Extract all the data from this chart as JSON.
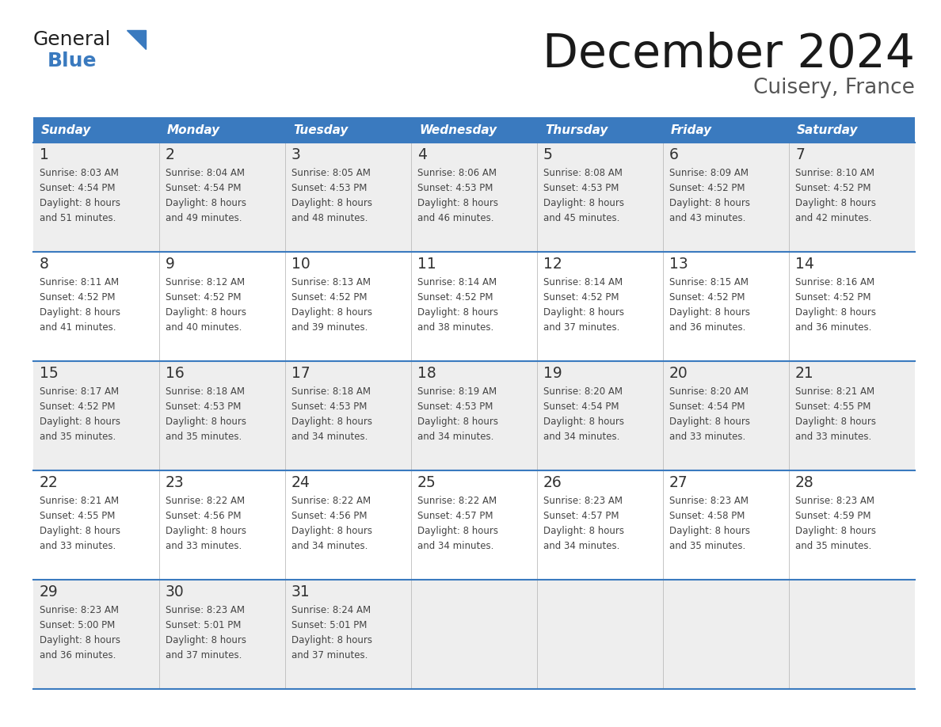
{
  "title": "December 2024",
  "subtitle": "Cuisery, France",
  "header_bg_color": "#3a7abf",
  "header_text_color": "#ffffff",
  "days_of_week": [
    "Sunday",
    "Monday",
    "Tuesday",
    "Wednesday",
    "Thursday",
    "Friday",
    "Saturday"
  ],
  "row_bg_even": "#eeeeee",
  "row_bg_odd": "#ffffff",
  "cell_border_color": "#3a7abf",
  "text_color": "#444444",
  "day_num_color": "#333333",
  "calendar": [
    [
      {
        "day": 1,
        "sunrise": "8:03 AM",
        "sunset": "4:54 PM",
        "daylight": "8 hours and 51 minutes."
      },
      {
        "day": 2,
        "sunrise": "8:04 AM",
        "sunset": "4:54 PM",
        "daylight": "8 hours and 49 minutes."
      },
      {
        "day": 3,
        "sunrise": "8:05 AM",
        "sunset": "4:53 PM",
        "daylight": "8 hours and 48 minutes."
      },
      {
        "day": 4,
        "sunrise": "8:06 AM",
        "sunset": "4:53 PM",
        "daylight": "8 hours and 46 minutes."
      },
      {
        "day": 5,
        "sunrise": "8:08 AM",
        "sunset": "4:53 PM",
        "daylight": "8 hours and 45 minutes."
      },
      {
        "day": 6,
        "sunrise": "8:09 AM",
        "sunset": "4:52 PM",
        "daylight": "8 hours and 43 minutes."
      },
      {
        "day": 7,
        "sunrise": "8:10 AM",
        "sunset": "4:52 PM",
        "daylight": "8 hours and 42 minutes."
      }
    ],
    [
      {
        "day": 8,
        "sunrise": "8:11 AM",
        "sunset": "4:52 PM",
        "daylight": "8 hours and 41 minutes."
      },
      {
        "day": 9,
        "sunrise": "8:12 AM",
        "sunset": "4:52 PM",
        "daylight": "8 hours and 40 minutes."
      },
      {
        "day": 10,
        "sunrise": "8:13 AM",
        "sunset": "4:52 PM",
        "daylight": "8 hours and 39 minutes."
      },
      {
        "day": 11,
        "sunrise": "8:14 AM",
        "sunset": "4:52 PM",
        "daylight": "8 hours and 38 minutes."
      },
      {
        "day": 12,
        "sunrise": "8:14 AM",
        "sunset": "4:52 PM",
        "daylight": "8 hours and 37 minutes."
      },
      {
        "day": 13,
        "sunrise": "8:15 AM",
        "sunset": "4:52 PM",
        "daylight": "8 hours and 36 minutes."
      },
      {
        "day": 14,
        "sunrise": "8:16 AM",
        "sunset": "4:52 PM",
        "daylight": "8 hours and 36 minutes."
      }
    ],
    [
      {
        "day": 15,
        "sunrise": "8:17 AM",
        "sunset": "4:52 PM",
        "daylight": "8 hours and 35 minutes."
      },
      {
        "day": 16,
        "sunrise": "8:18 AM",
        "sunset": "4:53 PM",
        "daylight": "8 hours and 35 minutes."
      },
      {
        "day": 17,
        "sunrise": "8:18 AM",
        "sunset": "4:53 PM",
        "daylight": "8 hours and 34 minutes."
      },
      {
        "day": 18,
        "sunrise": "8:19 AM",
        "sunset": "4:53 PM",
        "daylight": "8 hours and 34 minutes."
      },
      {
        "day": 19,
        "sunrise": "8:20 AM",
        "sunset": "4:54 PM",
        "daylight": "8 hours and 34 minutes."
      },
      {
        "day": 20,
        "sunrise": "8:20 AM",
        "sunset": "4:54 PM",
        "daylight": "8 hours and 33 minutes."
      },
      {
        "day": 21,
        "sunrise": "8:21 AM",
        "sunset": "4:55 PM",
        "daylight": "8 hours and 33 minutes."
      }
    ],
    [
      {
        "day": 22,
        "sunrise": "8:21 AM",
        "sunset": "4:55 PM",
        "daylight": "8 hours and 33 minutes."
      },
      {
        "day": 23,
        "sunrise": "8:22 AM",
        "sunset": "4:56 PM",
        "daylight": "8 hours and 33 minutes."
      },
      {
        "day": 24,
        "sunrise": "8:22 AM",
        "sunset": "4:56 PM",
        "daylight": "8 hours and 34 minutes."
      },
      {
        "day": 25,
        "sunrise": "8:22 AM",
        "sunset": "4:57 PM",
        "daylight": "8 hours and 34 minutes."
      },
      {
        "day": 26,
        "sunrise": "8:23 AM",
        "sunset": "4:57 PM",
        "daylight": "8 hours and 34 minutes."
      },
      {
        "day": 27,
        "sunrise": "8:23 AM",
        "sunset": "4:58 PM",
        "daylight": "8 hours and 35 minutes."
      },
      {
        "day": 28,
        "sunrise": "8:23 AM",
        "sunset": "4:59 PM",
        "daylight": "8 hours and 35 minutes."
      }
    ],
    [
      {
        "day": 29,
        "sunrise": "8:23 AM",
        "sunset": "5:00 PM",
        "daylight": "8 hours and 36 minutes."
      },
      {
        "day": 30,
        "sunrise": "8:23 AM",
        "sunset": "5:01 PM",
        "daylight": "8 hours and 37 minutes."
      },
      {
        "day": 31,
        "sunrise": "8:24 AM",
        "sunset": "5:01 PM",
        "daylight": "8 hours and 37 minutes."
      },
      null,
      null,
      null,
      null
    ]
  ],
  "logo_text_general": "General",
  "logo_text_blue": "Blue",
  "logo_triangle_color": "#3a7abf",
  "logo_general_color": "#222222"
}
